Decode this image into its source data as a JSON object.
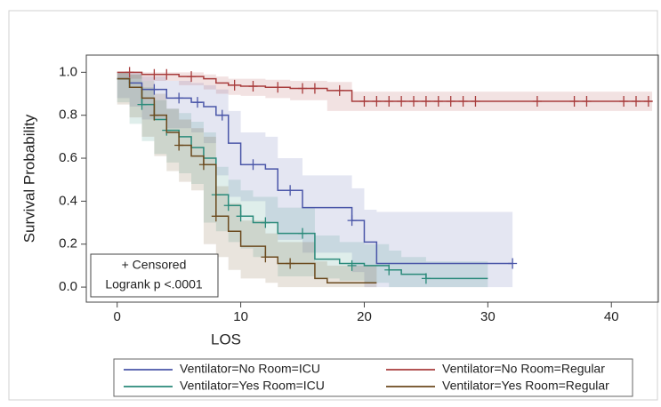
{
  "chart_data": {
    "type": "km",
    "xlabel": "LOS",
    "ylabel": "Survival Probability",
    "xlim": [
      -2.5,
      43.8
    ],
    "ylim": [
      -0.07,
      1.08
    ],
    "xticks": [
      0,
      10,
      20,
      30,
      40
    ],
    "yticks": [
      {
        "value": 0,
        "label": "0.0"
      },
      0.2,
      0.4,
      0.6,
      0.8,
      {
        "value": 1,
        "label": "1.0"
      }
    ],
    "annotations": [
      "+ Censored",
      "Logrank p <.0001"
    ],
    "series": [
      {
        "name": "Ventilator=No Room=ICU",
        "color": "#4a56a8",
        "x": [
          0,
          1,
          2,
          4,
          6,
          7,
          8,
          9,
          10,
          12,
          13,
          15,
          19,
          20,
          21,
          32
        ],
        "values": [
          0.97,
          0.95,
          0.92,
          0.88,
          0.86,
          0.84,
          0.8,
          0.67,
          0.57,
          0.55,
          0.45,
          0.37,
          0.31,
          0.21,
          0.11,
          0.11
        ],
        "lower": [
          0.93,
          0.88,
          0.84,
          0.78,
          0.74,
          0.72,
          0.67,
          0.52,
          0.42,
          0.4,
          0.3,
          0.22,
          0.16,
          0.07,
          0.0,
          0.0
        ],
        "upper": [
          1.0,
          1.0,
          0.98,
          0.96,
          0.95,
          0.94,
          0.92,
          0.82,
          0.72,
          0.7,
          0.6,
          0.52,
          0.46,
          0.36,
          0.35,
          0.35
        ],
        "censored_x": [
          3,
          5,
          6.5,
          8.5,
          11,
          14,
          19,
          32
        ],
        "censored_values": [
          0.92,
          0.88,
          0.86,
          0.8,
          0.57,
          0.45,
          0.31,
          0.11
        ]
      },
      {
        "name": "Ventilator=No Room=Regular",
        "color": "#a83c3c",
        "x": [
          0,
          2,
          5,
          7,
          8,
          9,
          10,
          12,
          14,
          17,
          19,
          43.3
        ],
        "values": [
          1.0,
          0.99,
          0.98,
          0.97,
          0.95,
          0.94,
          0.935,
          0.93,
          0.925,
          0.915,
          0.865,
          0.865
        ],
        "lower": [
          0.98,
          0.97,
          0.96,
          0.94,
          0.92,
          0.9,
          0.895,
          0.89,
          0.88,
          0.87,
          0.82,
          0.82
        ],
        "upper": [
          1.0,
          1.0,
          1.0,
          0.99,
          0.98,
          0.97,
          0.97,
          0.965,
          0.96,
          0.955,
          0.91,
          0.91
        ],
        "censored_x": [
          1,
          3,
          4,
          6,
          9.5,
          11,
          13,
          15,
          16,
          18,
          20,
          21,
          22,
          23,
          24,
          25,
          26,
          27,
          28,
          29,
          34,
          37,
          38,
          41,
          42,
          43
        ],
        "censored_values": [
          1.0,
          0.99,
          0.99,
          0.98,
          0.94,
          0.935,
          0.93,
          0.925,
          0.925,
          0.915,
          0.865,
          0.865,
          0.865,
          0.865,
          0.865,
          0.865,
          0.865,
          0.865,
          0.865,
          0.865,
          0.865,
          0.865,
          0.865,
          0.865,
          0.865,
          0.865
        ]
      },
      {
        "name": "Ventilator=Yes Room=ICU",
        "color": "#2a8a7a",
        "x": [
          0,
          1,
          2,
          3,
          4,
          5,
          6,
          7,
          8,
          9,
          10,
          11,
          13,
          16,
          18,
          20,
          22,
          23,
          25,
          30
        ],
        "values": [
          0.97,
          0.93,
          0.85,
          0.78,
          0.73,
          0.7,
          0.65,
          0.6,
          0.43,
          0.38,
          0.33,
          0.3,
          0.25,
          0.13,
          0.11,
          0.1,
          0.08,
          0.06,
          0.04,
          0.04
        ],
        "lower": [
          0.92,
          0.86,
          0.76,
          0.68,
          0.62,
          0.58,
          0.53,
          0.48,
          0.3,
          0.26,
          0.21,
          0.18,
          0.14,
          0.05,
          0.04,
          0.03,
          0.02,
          0.0,
          0.0,
          0.0
        ],
        "upper": [
          1.0,
          0.99,
          0.93,
          0.87,
          0.83,
          0.81,
          0.77,
          0.72,
          0.56,
          0.5,
          0.45,
          0.42,
          0.37,
          0.24,
          0.21,
          0.2,
          0.17,
          0.14,
          0.12,
          0.12
        ],
        "censored_x": [
          2,
          4,
          8,
          9,
          10,
          12,
          15,
          19,
          22,
          25
        ],
        "censored_values": [
          0.85,
          0.73,
          0.43,
          0.38,
          0.33,
          0.3,
          0.25,
          0.1,
          0.08,
          0.04
        ]
      },
      {
        "name": "Ventilator=Yes Room=Regular",
        "color": "#6b4a1e",
        "x": [
          0,
          1,
          2,
          3,
          4,
          5,
          6,
          7,
          8,
          9,
          10,
          12,
          13,
          16,
          17,
          21
        ],
        "values": [
          0.97,
          0.93,
          0.88,
          0.8,
          0.72,
          0.66,
          0.61,
          0.57,
          0.33,
          0.26,
          0.19,
          0.14,
          0.11,
          0.04,
          0.02,
          0.02
        ],
        "lower": [
          0.92,
          0.85,
          0.79,
          0.7,
          0.61,
          0.54,
          0.49,
          0.45,
          0.2,
          0.14,
          0.08,
          0.04,
          0.02,
          0.0,
          0.0,
          0.0
        ],
        "upper": [
          1.0,
          0.99,
          0.96,
          0.9,
          0.83,
          0.78,
          0.74,
          0.7,
          0.47,
          0.39,
          0.31,
          0.25,
          0.21,
          0.12,
          0.1,
          0.1
        ],
        "censored_x": [
          3,
          5,
          7,
          8,
          12,
          14
        ],
        "censored_values": [
          0.8,
          0.66,
          0.57,
          0.33,
          0.14,
          0.11
        ]
      }
    ]
  }
}
